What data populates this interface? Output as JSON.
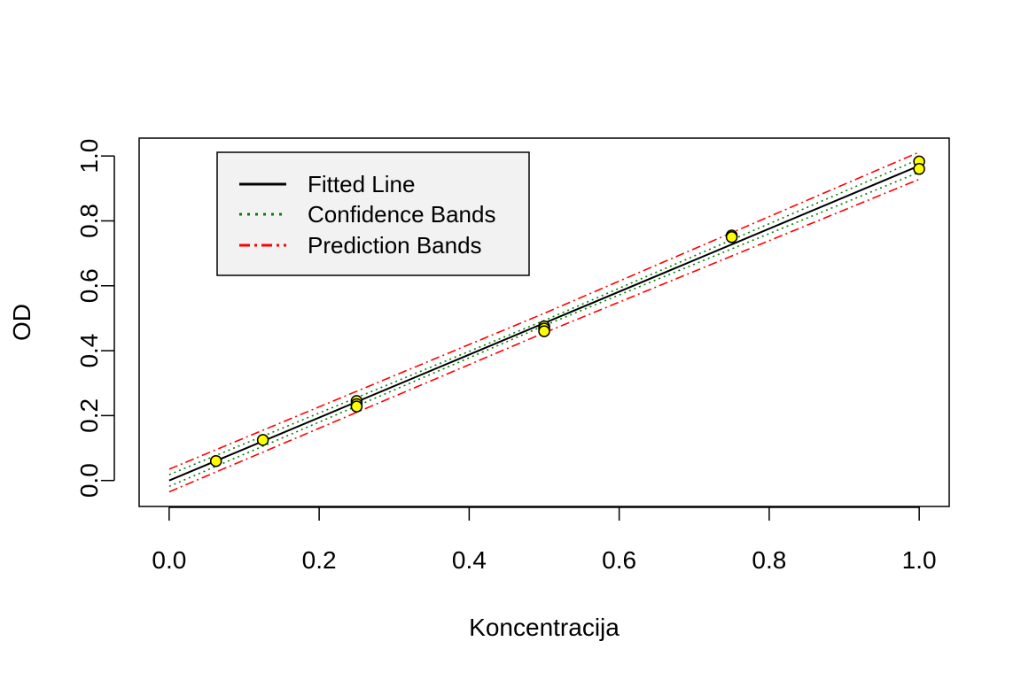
{
  "chart_data": {
    "type": "scatter",
    "title": "",
    "xlabel": "Koncentracija",
    "ylabel": "OD",
    "xlim": [
      -0.04,
      1.04
    ],
    "ylim": [
      -0.08,
      1.055
    ],
    "x_ticks": [
      "0.0",
      "0.2",
      "0.4",
      "0.6",
      "0.8",
      "1.0"
    ],
    "y_ticks": [
      "0.0",
      "0.2",
      "0.4",
      "0.6",
      "0.8",
      "1.0"
    ],
    "grid": false,
    "legend_position": "top-left",
    "points": {
      "x": [
        0.0625,
        0.125,
        0.25,
        0.25,
        0.25,
        0.5,
        0.5,
        0.5,
        0.75,
        0.75,
        1.0,
        1.0
      ],
      "y": [
        0.06,
        0.125,
        0.245,
        0.235,
        0.228,
        0.475,
        0.468,
        0.46,
        0.755,
        0.75,
        0.983,
        0.96
      ],
      "fill_color": "#FFFF00",
      "edge_color": "#000000"
    },
    "fitted_line": {
      "x": [
        0.0,
        1.0
      ],
      "y": [
        0.0,
        0.97
      ],
      "color": "#000000"
    },
    "confidence_band": {
      "x": [
        0.0,
        0.5,
        1.0
      ],
      "lower": [
        -0.018,
        0.477,
        0.95
      ],
      "upper": [
        0.018,
        0.493,
        0.99
      ],
      "color": "#008000"
    },
    "prediction_band": {
      "x": [
        0.0,
        0.5,
        1.0
      ],
      "lower": [
        -0.035,
        0.455,
        0.928
      ],
      "upper": [
        0.035,
        0.515,
        1.012
      ],
      "color": "#FF0000"
    },
    "legend": {
      "entries": [
        {
          "label": "Fitted Line",
          "color": "#000000",
          "style": "solid"
        },
        {
          "label": "Confidence Bands",
          "color": "#008000",
          "style": "dotted"
        },
        {
          "label": "Prediction Bands",
          "color": "#FF0000",
          "style": "dashdot"
        }
      ],
      "background": "#F2F2F2"
    }
  }
}
